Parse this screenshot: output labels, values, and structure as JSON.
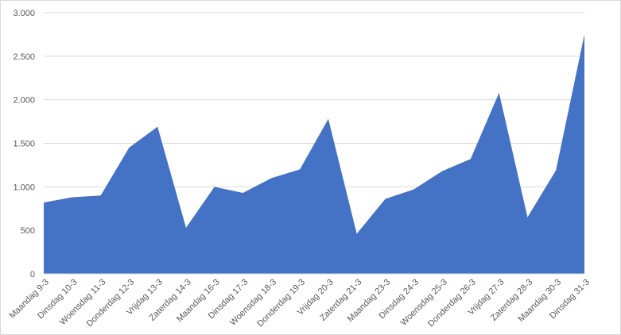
{
  "chart_data": {
    "type": "area",
    "categories": [
      "Maandag 9-3",
      "Dinsdag 10-3",
      "Woensdag 11-3",
      "Donderdag 12-3",
      "Vrijdag 13-3",
      "Zaterdag 14-3",
      "Maandag 16-3",
      "Dinsdag 17-3",
      "Woensdag 18-3",
      "Donderdag 19-3",
      "Vrijdag 20-3",
      "Zaterdag 21-3",
      "Maandag 23-3",
      "Dinsdag 24-3",
      "Woensdag 25-3",
      "Donderdag 26-3",
      "Vrijdag 27-3",
      "Zaterdag 28-3",
      "Maandag 30-3",
      "Dinsdag 31-3"
    ],
    "values": [
      820,
      880,
      900,
      1450,
      1690,
      530,
      1000,
      930,
      1100,
      1200,
      1780,
      460,
      860,
      970,
      1180,
      1320,
      2080,
      650,
      1190,
      2750
    ],
    "color": "#4472c4",
    "ylim": [
      0,
      3000
    ],
    "yticks": [
      0,
      500,
      {
        "value": 1000,
        "label": "1.000"
      },
      {
        "value": 1500,
        "label": "1.500"
      },
      {
        "value": 2000,
        "label": "2.000"
      },
      {
        "value": 2500,
        "label": "2.500"
      },
      {
        "value": 3000,
        "label": "3.000"
      }
    ],
    "grid": true
  }
}
